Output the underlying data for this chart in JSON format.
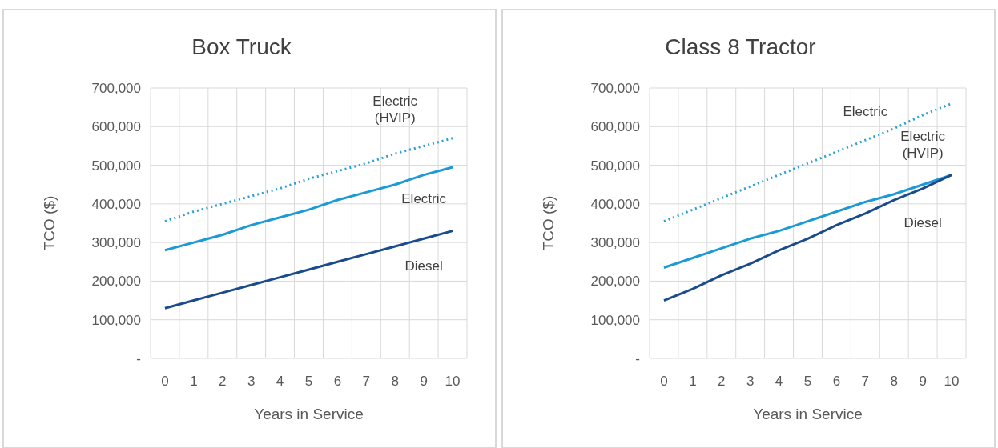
{
  "chart_data": [
    {
      "type": "line",
      "title": "Box Truck",
      "xlabel": "Years in Service",
      "ylabel": "TCO ($)",
      "categories": [
        "0",
        "1",
        "2",
        "3",
        "4",
        "5",
        "6",
        "7",
        "8",
        "9",
        "10"
      ],
      "series": [
        {
          "name": "Electric (HVIP)",
          "color": "#2aa0d8",
          "line_style": "dotted",
          "values": [
            355000,
            380000,
            400000,
            420000,
            440000,
            465000,
            485000,
            505000,
            530000,
            550000,
            570000
          ]
        },
        {
          "name": "Electric",
          "color": "#1c9ad6",
          "line_style": "solid",
          "values": [
            280000,
            300000,
            320000,
            345000,
            365000,
            385000,
            410000,
            430000,
            450000,
            475000,
            495000
          ]
        },
        {
          "name": "Diesel",
          "color": "#1a4b8c",
          "line_style": "solid",
          "values": [
            130000,
            150000,
            170000,
            190000,
            210000,
            230000,
            250000,
            270000,
            290000,
            310000,
            330000
          ]
        }
      ],
      "ylim": [
        0,
        700000
      ],
      "yticks": [
        {
          "value": 0,
          "label": "-"
        },
        {
          "value": 100000,
          "label": "100,000"
        },
        {
          "value": 200000,
          "label": "200,000"
        },
        {
          "value": 300000,
          "label": "300,000"
        },
        {
          "value": 400000,
          "label": "400,000"
        },
        {
          "value": 500000,
          "label": "500,000"
        },
        {
          "value": 600000,
          "label": "600,000"
        },
        {
          "value": 700000,
          "label": "700,000"
        }
      ],
      "grid": true,
      "legend": false,
      "marker": "none"
    },
    {
      "type": "line",
      "title": "Class 8 Tractor",
      "xlabel": "Years in Service",
      "ylabel": "TCO ($)",
      "categories": [
        "0",
        "1",
        "2",
        "3",
        "4",
        "5",
        "6",
        "7",
        "8",
        "9",
        "10"
      ],
      "series": [
        {
          "name": "Electric",
          "color": "#2aa0d8",
          "line_style": "dotted",
          "values": [
            355000,
            385000,
            415000,
            445000,
            475000,
            505000,
            535000,
            565000,
            595000,
            630000,
            660000
          ]
        },
        {
          "name": "Electric (HVIP)",
          "color": "#1c9ad6",
          "line_style": "solid",
          "values": [
            235000,
            260000,
            285000,
            310000,
            330000,
            355000,
            380000,
            405000,
            425000,
            450000,
            475000
          ]
        },
        {
          "name": "Diesel",
          "color": "#1a4b8c",
          "line_style": "solid",
          "values": [
            150000,
            180000,
            215000,
            245000,
            280000,
            310000,
            345000,
            375000,
            410000,
            440000,
            475000
          ]
        }
      ],
      "ylim": [
        0,
        700000
      ],
      "yticks": [
        {
          "value": 0,
          "label": "-"
        },
        {
          "value": 100000,
          "label": "100,000"
        },
        {
          "value": 200000,
          "label": "200,000"
        },
        {
          "value": 300000,
          "label": "300,000"
        },
        {
          "value": 400000,
          "label": "400,000"
        },
        {
          "value": 500000,
          "label": "500,000"
        },
        {
          "value": 600000,
          "label": "600,000"
        },
        {
          "value": 700000,
          "label": "700,000"
        }
      ],
      "grid": true,
      "legend": false,
      "marker": "none"
    }
  ]
}
